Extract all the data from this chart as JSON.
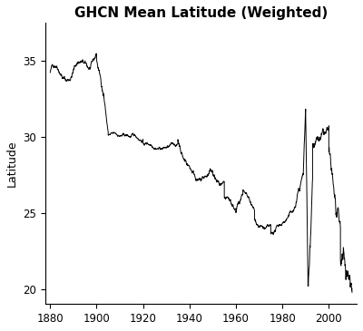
{
  "title": "GHCN Mean Latitude (Weighted)",
  "xlabel": "",
  "ylabel": "Latitude",
  "xlim": [
    1878,
    2012
  ],
  "ylim": [
    19,
    37.5
  ],
  "yticks": [
    20,
    25,
    30,
    35
  ],
  "xticks": [
    1880,
    1900,
    1920,
    1940,
    1960,
    1980,
    2000
  ],
  "line_color": "#000000",
  "bg_color": "#ffffff",
  "linewidth": 0.7,
  "title_fontsize": 11,
  "axis_fontsize": 9,
  "tick_fontsize": 8.5
}
